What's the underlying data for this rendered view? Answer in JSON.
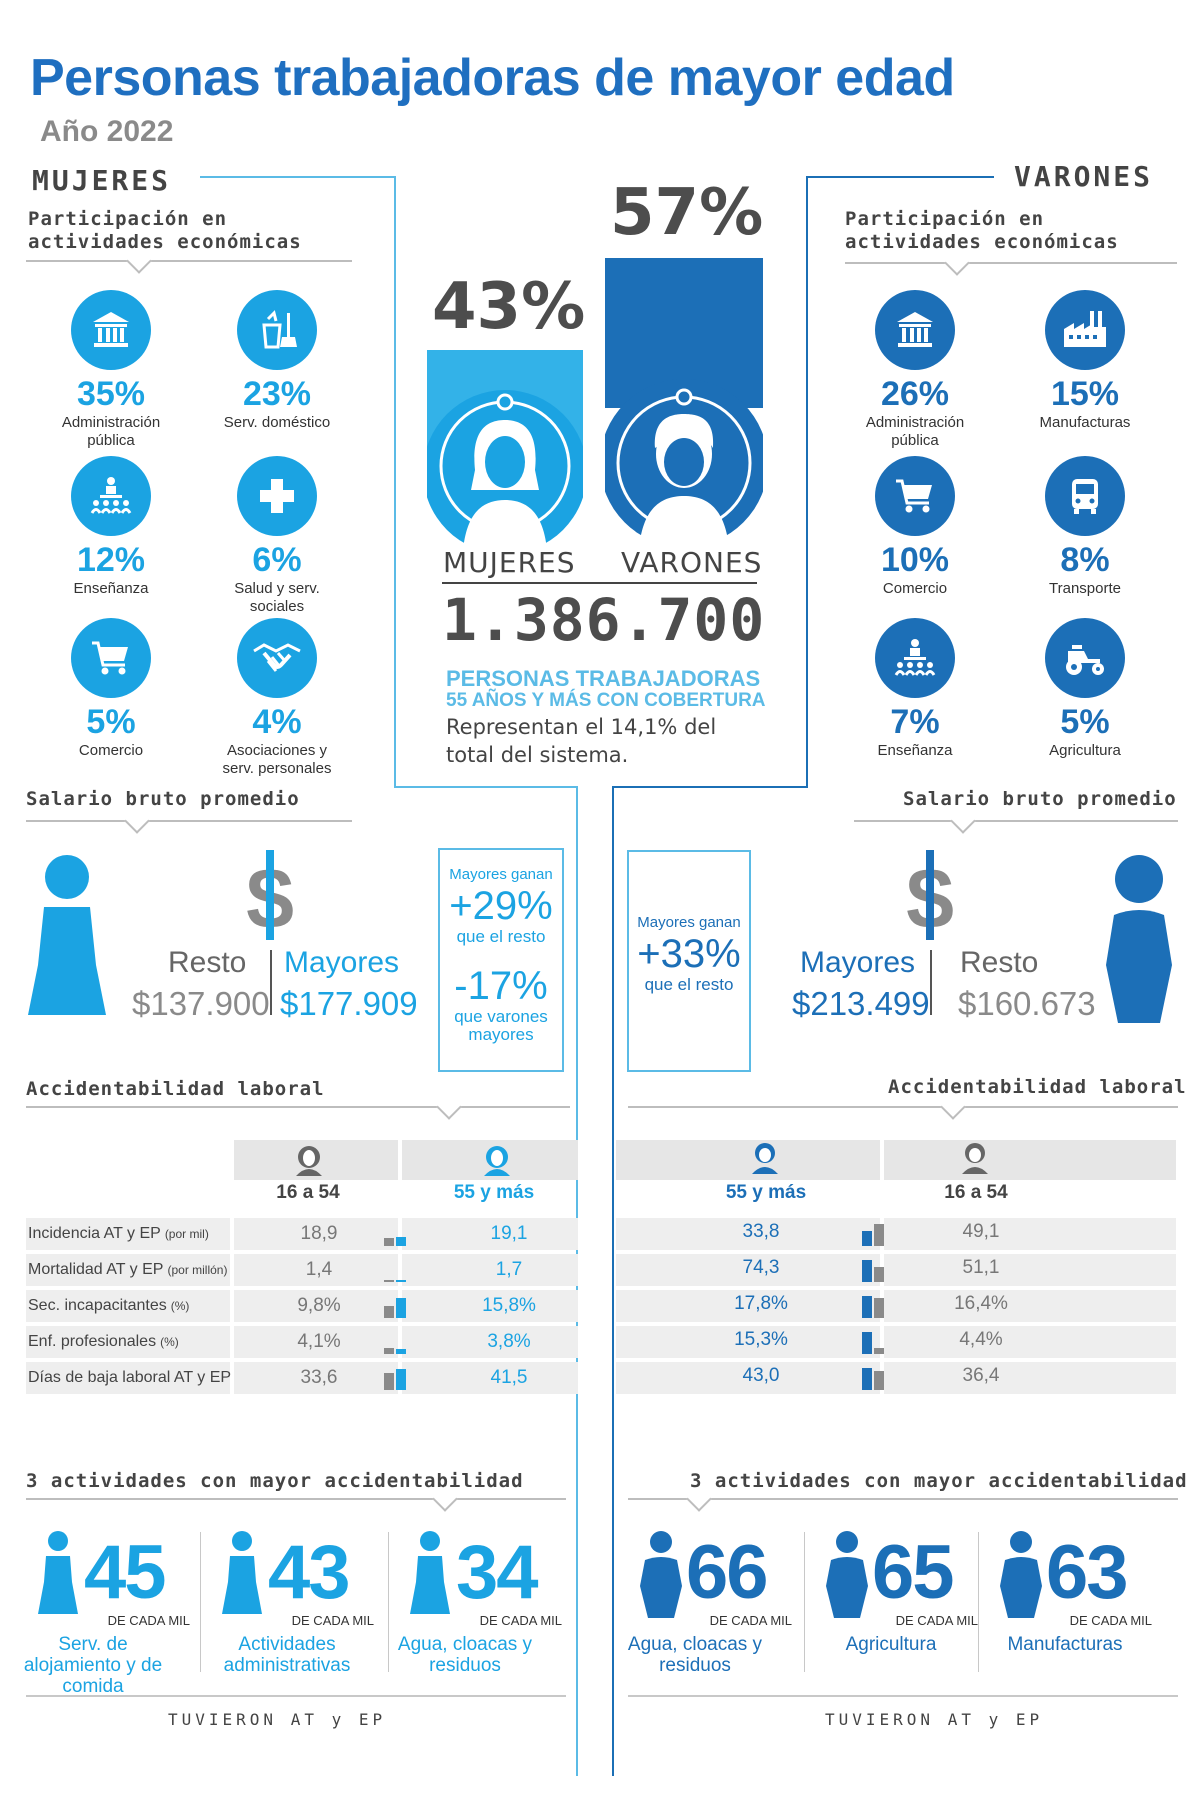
{
  "header": {
    "title": "Personas trabajadoras de mayor edad",
    "year": "Año 2022"
  },
  "women": {
    "heading": "MUJERES",
    "participation_title": "Participación en actividades económicas",
    "activities": [
      {
        "pct": "35%",
        "label": "Administración pública",
        "icon": "government-building-icon"
      },
      {
        "pct": "23%",
        "label": "Serv. doméstico",
        "icon": "cleaning-supplies-icon"
      },
      {
        "pct": "12%",
        "label": "Enseñanza",
        "icon": "teacher-class-icon"
      },
      {
        "pct": "6%",
        "label": "Salud y serv. sociales",
        "icon": "health-cross-icon"
      },
      {
        "pct": "5%",
        "label": "Comercio",
        "icon": "shopping-cart-icon"
      },
      {
        "pct": "4%",
        "label": "Asociaciones y serv. personales",
        "icon": "handshake-icon"
      }
    ],
    "salary_title": "Salario bruto promedio",
    "salary": {
      "resto_label": "Resto",
      "resto_value": "$137.900",
      "mayores_label": "Mayores",
      "mayores_value": "$177.909"
    },
    "salary_box": {
      "line1": "Mayores ganan",
      "big1": "+29%",
      "line2": "que el resto",
      "big2": "-17%",
      "line3": "que varones mayores"
    },
    "accident_title": "Accidentabilidad laboral",
    "col_young": "16 a 54",
    "col_old": "55 y más",
    "rows": [
      {
        "label": "Incidencia AT y EP",
        "unit": "(por mil)",
        "young": "18,9",
        "old": "19,1"
      },
      {
        "label": "Mortalidad AT y EP",
        "unit": "(por millón)",
        "young": "1,4",
        "old": "1,7"
      },
      {
        "label": "Sec. incapacitantes",
        "unit": "(%)",
        "young": "9,8%",
        "old": "15,8%"
      },
      {
        "label": "Enf. profesionales",
        "unit": "(%)",
        "young": "4,1%",
        "old": "3,8%"
      },
      {
        "label": "Días de baja laboral AT y EP",
        "unit": "",
        "young": "33,6",
        "old": "41,5"
      }
    ],
    "top_title": "3 actividades con mayor accidentabilidad",
    "top": [
      {
        "num": "45",
        "per": "DE CADA MIL",
        "label": "Serv. de alojamiento y de comida"
      },
      {
        "num": "43",
        "per": "DE CADA MIL",
        "label": "Actividades administrativas"
      },
      {
        "num": "34",
        "per": "DE CADA MIL",
        "label": "Agua, cloacas y residuos"
      }
    ],
    "footer": "TUVIERON AT y EP"
  },
  "center": {
    "women_pct": "43%",
    "men_pct": "57%",
    "women_label": "MUJERES",
    "men_label": "VARONES",
    "total": "1.386.700",
    "coverage_line1": "PERSONAS TRABAJADORAS",
    "coverage_line2": "55 AÑOS Y MÁS CON COBERTURA",
    "coverage_line3": "Representan el 14,1% del",
    "coverage_line4": "total del sistema."
  },
  "men": {
    "heading": "VARONES",
    "participation_title": "Participación en actividades económicas",
    "activities": [
      {
        "pct": "26%",
        "label": "Administración pública",
        "icon": "government-building-icon"
      },
      {
        "pct": "15%",
        "label": "Manufacturas",
        "icon": "factory-icon"
      },
      {
        "pct": "10%",
        "label": "Comercio",
        "icon": "shopping-cart-icon"
      },
      {
        "pct": "8%",
        "label": "Transporte",
        "icon": "bus-icon"
      },
      {
        "pct": "7%",
        "label": "Enseñanza",
        "icon": "teacher-class-icon"
      },
      {
        "pct": "5%",
        "label": "Agricultura",
        "icon": "tractor-icon"
      }
    ],
    "salary_title": "Salario bruto promedio",
    "salary": {
      "mayores_label": "Mayores",
      "mayores_value": "$213.499",
      "resto_label": "Resto",
      "resto_value": "$160.673"
    },
    "salary_box": {
      "line1": "Mayores ganan",
      "big1": "+33%",
      "line2": "que el resto"
    },
    "accident_title": "Accidentabilidad laboral",
    "col_old": "55 y más",
    "col_young": "16 a 54",
    "rows": [
      {
        "old": "33,8",
        "young": "49,1"
      },
      {
        "old": "74,3",
        "young": "51,1"
      },
      {
        "old": "17,8%",
        "young": "16,4%"
      },
      {
        "old": "15,3%",
        "young": "4,4%"
      },
      {
        "old": "43,0",
        "young": "36,4"
      }
    ],
    "top_title": "3 actividades con mayor accidentabilidad",
    "top": [
      {
        "num": "66",
        "per": "DE CADA MIL",
        "label": "Agua, cloacas y residuos"
      },
      {
        "num": "65",
        "per": "DE CADA MIL",
        "label": "Agricultura"
      },
      {
        "num": "63",
        "per": "DE CADA MIL",
        "label": "Manufacturas"
      }
    ],
    "footer": "TUVIERON AT y EP"
  },
  "bar_values": {
    "women_young": [
      18.9,
      1.4,
      9.8,
      4.1,
      33.6
    ],
    "women_old": [
      19.1,
      1.7,
      15.8,
      3.8,
      41.5
    ],
    "men_old": [
      33.8,
      74.3,
      17.8,
      15.3,
      43.0
    ],
    "men_young": [
      49.1,
      51.1,
      16.4,
      4.4,
      36.4
    ]
  },
  "colors": {
    "light_blue": "#1ba3e2",
    "dark_blue": "#1c6fb7",
    "title_blue": "#1f6fc0",
    "gray": "#8a8a8a"
  }
}
